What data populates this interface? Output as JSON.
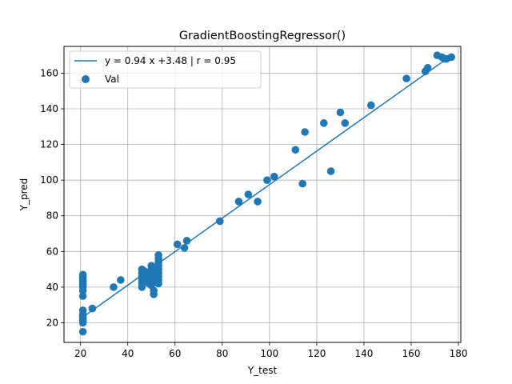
{
  "chart_data": {
    "type": "scatter",
    "title": "GradientBoostingRegressor()",
    "xlabel": "Y_test",
    "ylabel": "Y_pred",
    "xlim": [
      13,
      181
    ],
    "ylim": [
      9,
      175
    ],
    "xticks": [
      20,
      40,
      60,
      80,
      100,
      120,
      140,
      160,
      180
    ],
    "yticks": [
      20,
      40,
      60,
      80,
      100,
      120,
      140,
      160
    ],
    "grid": true,
    "legend_placement": "top-left",
    "colors": {
      "series": "#1f77b4",
      "grid": "#b0b0b0",
      "axes": "#000000"
    },
    "fit_line": {
      "label": "y = 0.94 x +3.48 | r = 0.95",
      "slope": 0.94,
      "intercept": 3.48,
      "x_range": [
        21,
        176
      ]
    },
    "series": [
      {
        "name": "Val",
        "points": [
          [
            21,
            47
          ],
          [
            21,
            46
          ],
          [
            21,
            45
          ],
          [
            21,
            44
          ],
          [
            21,
            43
          ],
          [
            21,
            42
          ],
          [
            21,
            41
          ],
          [
            21,
            40
          ],
          [
            21,
            38
          ],
          [
            21,
            35
          ],
          [
            21,
            27
          ],
          [
            21,
            25
          ],
          [
            21,
            24
          ],
          [
            21,
            23
          ],
          [
            21,
            22
          ],
          [
            21,
            21
          ],
          [
            21,
            20
          ],
          [
            21,
            15
          ],
          [
            25,
            28
          ],
          [
            34,
            40
          ],
          [
            37,
            44
          ],
          [
            46,
            50
          ],
          [
            46,
            48
          ],
          [
            46,
            46
          ],
          [
            46,
            44
          ],
          [
            46,
            42
          ],
          [
            46,
            40
          ],
          [
            47,
            49
          ],
          [
            47,
            45
          ],
          [
            49,
            48
          ],
          [
            49,
            46
          ],
          [
            49,
            44
          ],
          [
            49,
            42
          ],
          [
            50,
            52
          ],
          [
            50,
            50
          ],
          [
            50,
            48
          ],
          [
            50,
            47
          ],
          [
            50,
            45
          ],
          [
            50,
            43
          ],
          [
            50,
            41
          ],
          [
            51,
            51
          ],
          [
            51,
            49
          ],
          [
            51,
            46
          ],
          [
            51,
            44
          ],
          [
            51,
            38
          ],
          [
            51,
            36
          ],
          [
            52,
            47
          ],
          [
            52,
            45
          ],
          [
            52,
            43
          ],
          [
            53,
            58
          ],
          [
            53,
            56
          ],
          [
            53,
            54
          ],
          [
            53,
            52
          ],
          [
            53,
            50
          ],
          [
            53,
            48
          ],
          [
            53,
            46
          ],
          [
            53,
            44
          ],
          [
            53,
            42
          ],
          [
            61,
            64
          ],
          [
            64,
            62
          ],
          [
            65,
            66
          ],
          [
            79,
            77
          ],
          [
            87,
            88
          ],
          [
            91,
            92
          ],
          [
            95,
            88
          ],
          [
            99,
            100
          ],
          [
            102,
            102
          ],
          [
            111,
            117
          ],
          [
            114,
            98
          ],
          [
            115,
            127
          ],
          [
            123,
            132
          ],
          [
            126,
            105
          ],
          [
            130,
            138
          ],
          [
            132,
            132
          ],
          [
            143,
            142
          ],
          [
            158,
            157
          ],
          [
            166,
            161
          ],
          [
            167,
            163
          ],
          [
            171,
            170
          ],
          [
            173,
            169
          ],
          [
            174,
            168
          ],
          [
            175,
            168
          ],
          [
            177,
            169
          ]
        ]
      }
    ]
  }
}
